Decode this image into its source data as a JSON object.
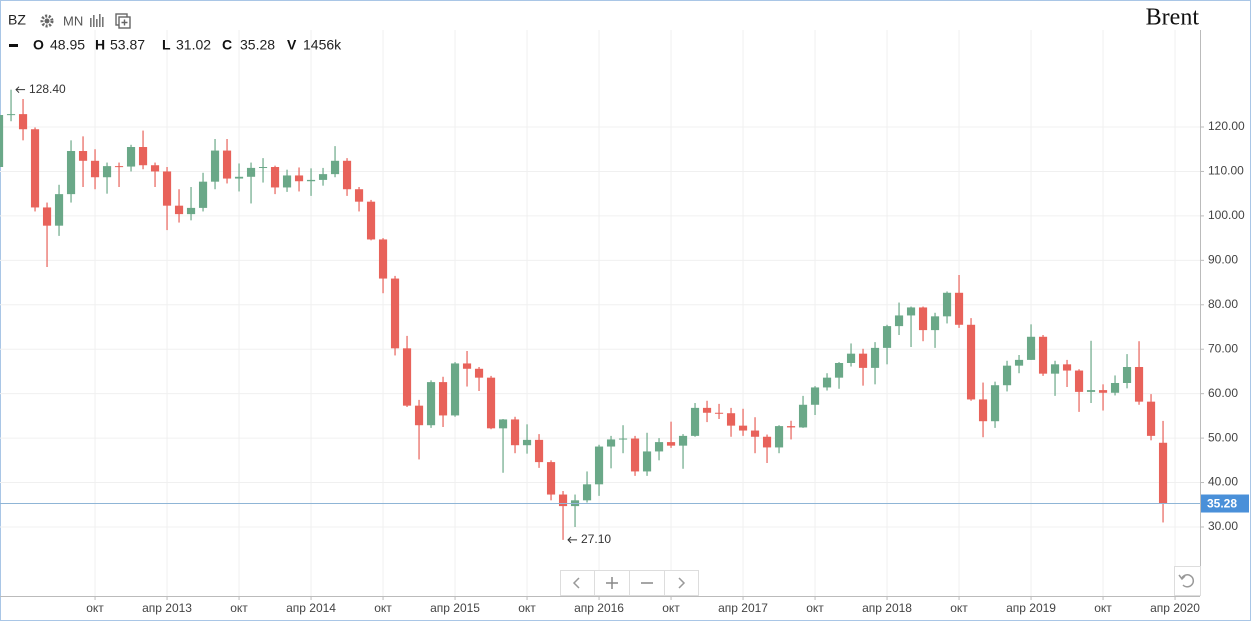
{
  "header": {
    "symbol": "BZ",
    "period": "MN",
    "name": "Brent",
    "ohlcv": [
      {
        "key": "O",
        "value": "48.95"
      },
      {
        "key": "H",
        "value": "53.87"
      },
      {
        "key": "L",
        "value": "31.02"
      },
      {
        "key": "C",
        "value": "35.28"
      },
      {
        "key": "V",
        "value": "1456k"
      }
    ]
  },
  "chart_data": {
    "type": "candlestick",
    "open": [
      111.0,
      122.7,
      122.9,
      119.5,
      101.9,
      97.8,
      104.9,
      114.6,
      112.4,
      108.7,
      111.2,
      111.1,
      115.5,
      111.4,
      110.0,
      102.3,
      100.4,
      101.8,
      107.7,
      114.7,
      108.4,
      108.8,
      110.8,
      111.0,
      106.4,
      109.1,
      107.8,
      108.1,
      109.4,
      112.4,
      106.0,
      103.2,
      94.7,
      85.9,
      70.2,
      57.3,
      52.9,
      62.6,
      55.1,
      66.8,
      65.6,
      63.6,
      52.2,
      54.2,
      48.4,
      49.6,
      44.6,
      37.3,
      34.7,
      36.0,
      39.6,
      48.1,
      49.7,
      49.9,
      42.5,
      47.0,
      49.1,
      48.3,
      50.5,
      56.8,
      55.7,
      55.6,
      52.8,
      51.7,
      50.3,
      47.9,
      52.7,
      52.4,
      57.5,
      61.4,
      63.6,
      66.9,
      69.0,
      65.8,
      70.3,
      75.2,
      77.6,
      79.4,
      74.3,
      77.4,
      82.7,
      75.5,
      58.7,
      53.8,
      61.9,
      66.3,
      67.6,
      72.8,
      64.5,
      66.6,
      65.2,
      60.4,
      60.8,
      60.2,
      62.4,
      66.0,
      58.2,
      48.95
    ],
    "high": [
      122.7,
      128.4,
      126.3,
      119.9,
      103.0,
      107.0,
      117.0,
      117.9,
      115.0,
      112.0,
      112.0,
      116.0,
      119.2,
      112.0,
      111.0,
      106.0,
      106.5,
      109.7,
      117.3,
      117.3,
      111.8,
      112.0,
      113.0,
      111.3,
      110.4,
      110.9,
      110.7,
      110.8,
      115.7,
      113.0,
      106.5,
      103.6,
      95.0,
      86.5,
      73.0,
      58.6,
      63.0,
      63.8,
      67.1,
      69.6,
      66.0,
      64.0,
      54.3,
      54.8,
      53.1,
      50.9,
      45.0,
      38.1,
      37.3,
      42.5,
      48.5,
      50.5,
      52.9,
      50.5,
      51.2,
      50.0,
      53.7,
      50.9,
      57.9,
      58.4,
      57.7,
      56.8,
      56.6,
      54.7,
      50.8,
      52.9,
      53.9,
      59.5,
      61.7,
      64.6,
      67.1,
      71.3,
      70.1,
      71.6,
      75.5,
      80.5,
      79.6,
      79.6,
      78.2,
      83.0,
      86.7,
      77.0,
      62.5,
      62.7,
      67.4,
      68.7,
      75.6,
      73.2,
      67.4,
      67.6,
      65.5,
      71.9,
      62.1,
      64.1,
      68.9,
      71.8,
      59.9,
      53.87
    ],
    "low": [
      109.0,
      121.3,
      117.0,
      101.0,
      88.5,
      95.5,
      103.0,
      106.5,
      106.0,
      105.0,
      106.5,
      110.0,
      110.5,
      106.5,
      96.8,
      98.5,
      99.0,
      101.0,
      106.0,
      107.3,
      105.5,
      102.8,
      107.5,
      104.9,
      105.4,
      105.5,
      104.5,
      106.8,
      108.7,
      104.5,
      101.0,
      94.5,
      82.6,
      68.6,
      57.0,
      45.2,
      52.3,
      52.5,
      54.8,
      61.6,
      60.6,
      52.0,
      42.2,
      46.6,
      46.5,
      43.3,
      36.0,
      27.1,
      30.0,
      35.5,
      37.0,
      43.2,
      46.6,
      41.5,
      41.5,
      45.0,
      47.8,
      43.1,
      50.3,
      53.6,
      54.3,
      50.3,
      50.5,
      46.6,
      44.4,
      46.6,
      49.7,
      52.3,
      55.2,
      60.7,
      61.1,
      66.1,
      61.8,
      62.1,
      66.6,
      73.2,
      70.5,
      71.8,
      70.3,
      75.8,
      74.8,
      58.4,
      50.2,
      52.3,
      60.5,
      64.6,
      67.6,
      64.0,
      59.5,
      61.5,
      55.9,
      57.9,
      56.2,
      59.6,
      61.2,
      57.5,
      49.5,
      31.02
    ],
    "close": [
      122.7,
      122.9,
      119.5,
      101.9,
      97.8,
      104.9,
      114.6,
      112.4,
      108.7,
      111.2,
      111.1,
      115.5,
      111.4,
      110.0,
      102.3,
      100.4,
      101.8,
      107.7,
      114.7,
      108.4,
      108.8,
      110.8,
      111.0,
      106.4,
      109.1,
      107.8,
      108.1,
      109.4,
      112.4,
      106.0,
      103.2,
      94.7,
      85.9,
      70.2,
      57.3,
      52.9,
      62.6,
      55.1,
      66.8,
      65.6,
      63.6,
      52.2,
      54.2,
      48.4,
      49.6,
      44.6,
      37.3,
      34.7,
      36.0,
      39.6,
      48.1,
      49.7,
      49.9,
      42.5,
      47.0,
      49.1,
      48.3,
      50.5,
      56.8,
      55.7,
      55.6,
      52.8,
      51.7,
      50.3,
      47.9,
      52.7,
      52.4,
      57.5,
      61.4,
      63.6,
      66.9,
      69.0,
      65.8,
      70.3,
      75.2,
      77.6,
      79.4,
      74.3,
      77.4,
      82.7,
      75.5,
      58.7,
      53.8,
      61.9,
      66.3,
      67.6,
      72.8,
      64.5,
      66.6,
      65.2,
      60.4,
      60.8,
      60.2,
      62.4,
      66.0,
      58.2,
      50.5,
      35.28
    ],
    "up_color": "#6aa888",
    "down_color": "#e8625a",
    "xlim": [
      0.08,
      100.08
    ],
    "xticks": [
      {
        "value": 8,
        "label": "окт"
      },
      {
        "value": 14,
        "label": "апр 2013"
      },
      {
        "value": 20,
        "label": "окт"
      },
      {
        "value": 26,
        "label": "апр 2014"
      },
      {
        "value": 32,
        "label": "окт"
      },
      {
        "value": 38,
        "label": "апр 2015"
      },
      {
        "value": 44,
        "label": "окт"
      },
      {
        "value": 50,
        "label": "апр 2016"
      },
      {
        "value": 56,
        "label": "окт"
      },
      {
        "value": 62,
        "label": "апр 2017"
      },
      {
        "value": 68,
        "label": "окт"
      },
      {
        "value": 74,
        "label": "апр 2018"
      },
      {
        "value": 80,
        "label": "окт"
      },
      {
        "value": 86,
        "label": "апр 2019"
      },
      {
        "value": 92,
        "label": "окт"
      },
      {
        "value": 98,
        "label": "апр 2020"
      }
    ],
    "ylim": [
      14.47,
      148.58
    ],
    "yticks": [
      {
        "value": 30,
        "label": "30.00"
      },
      {
        "value": 40,
        "label": "40.00"
      },
      {
        "value": 50,
        "label": "50.00"
      },
      {
        "value": 60,
        "label": "60.00"
      },
      {
        "value": 70,
        "label": "70.00"
      },
      {
        "value": 80,
        "label": "80.00"
      },
      {
        "value": 90,
        "label": "90.00"
      },
      {
        "value": 100,
        "label": "100.00"
      },
      {
        "value": 110,
        "label": "110.00"
      },
      {
        "value": 120,
        "label": "120.00"
      }
    ],
    "grid": true,
    "max_label": "128.40",
    "min_label": "27.10",
    "last_label": "35.28",
    "last_line_color": "#8fb5d6",
    "last_label_color": "#4a90d9"
  }
}
